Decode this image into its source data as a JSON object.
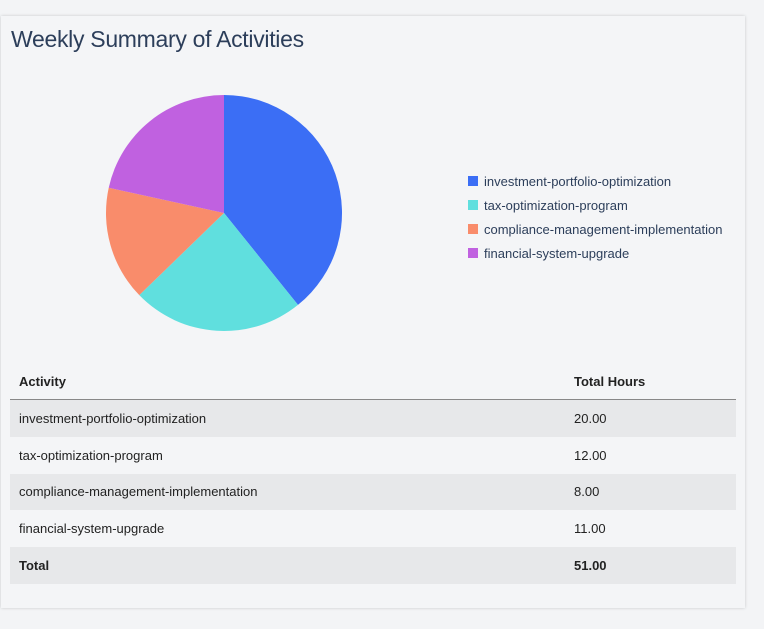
{
  "card": {
    "title": "Weekly Summary of Activities"
  },
  "chart_data": {
    "type": "pie",
    "title": "Weekly Summary of Activities",
    "categories": [
      "investment-portfolio-optimization",
      "tax-optimization-program",
      "compliance-management-implementation",
      "financial-system-upgrade"
    ],
    "values": [
      20,
      12,
      8,
      11
    ],
    "colors": [
      "#3b6ef5",
      "#60dfde",
      "#f98c6b",
      "#c061e0"
    ],
    "legend_position": "right"
  },
  "table": {
    "headers": [
      "Activity",
      "Total Hours"
    ],
    "rows": [
      [
        "investment-portfolio-optimization",
        "20.00"
      ],
      [
        "tax-optimization-program",
        "12.00"
      ],
      [
        "compliance-management-implementation",
        "8.00"
      ],
      [
        "financial-system-upgrade",
        "11.00"
      ]
    ],
    "total": [
      "Total",
      "51.00"
    ]
  }
}
